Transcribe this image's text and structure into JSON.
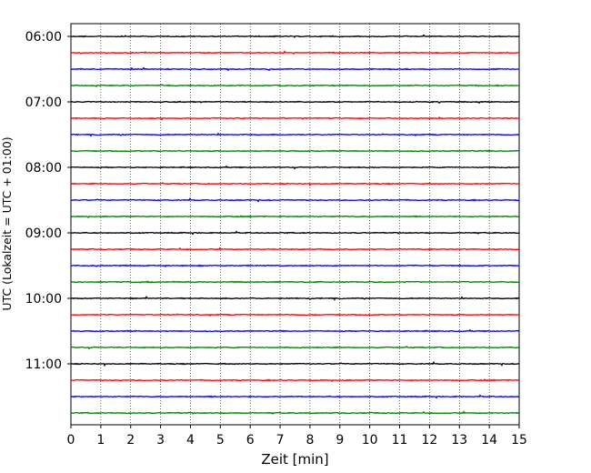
{
  "chart_data": {
    "type": "line",
    "chart_kind": "helicorder",
    "xlabel": "Zeit  [min]",
    "ylabel": "UTC (Lokalzeit = UTC + 01:00)",
    "xlim": [
      0,
      15
    ],
    "xticks": [
      "0",
      "1",
      "2",
      "3",
      "4",
      "5",
      "6",
      "7",
      "8",
      "9",
      "10",
      "11",
      "12",
      "13",
      "14",
      "15"
    ],
    "grid": "vertical-dotted",
    "start_time": "06:00",
    "row_minutes": 15,
    "row_count": 24,
    "ytick_labels": [
      "06:00",
      "07:00",
      "08:00",
      "09:00",
      "10:00",
      "11:00"
    ],
    "trace_colors": [
      "#000000",
      "#ff0000",
      "#0000ff",
      "#008000"
    ],
    "noise_amplitude": "low, steady background noise; no events"
  }
}
